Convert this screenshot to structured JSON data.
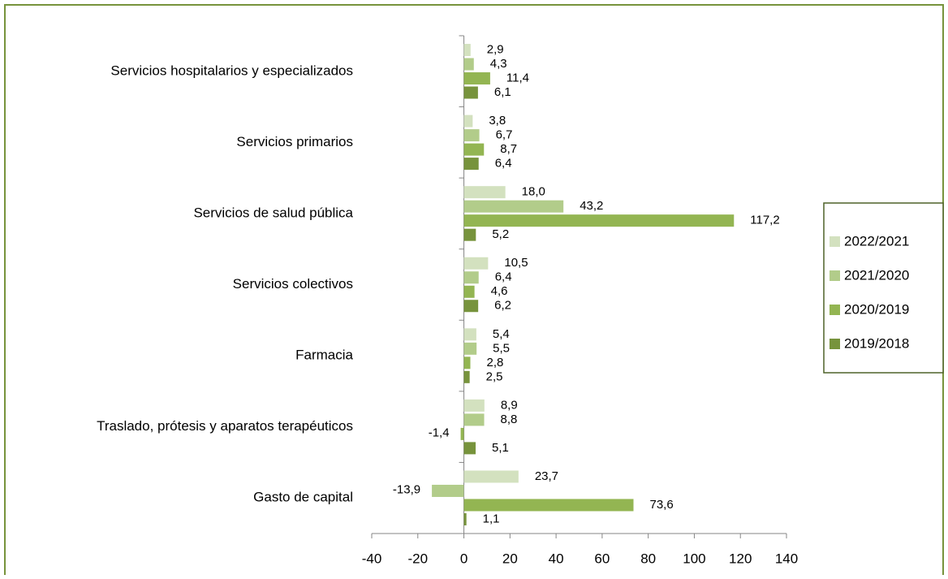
{
  "chart_data": {
    "type": "bar",
    "orientation": "horizontal",
    "categories": [
      "Servicios hospitalarios y especializados",
      "Servicios primarios",
      "Servicios de salud pública",
      "Servicios colectivos",
      "Farmacia",
      "Traslado, prótesis y aparatos terapéuticos",
      "Gasto de capital"
    ],
    "series": [
      {
        "name": "2022/2021",
        "color": "#d3e1bf",
        "values": [
          2.9,
          3.8,
          18.0,
          10.5,
          5.4,
          8.9,
          23.7
        ],
        "value_labels": [
          "2,9",
          "3,8",
          "18,0",
          "10,5",
          "5,4",
          "8,9",
          "23,7"
        ]
      },
      {
        "name": "2021/2020",
        "color": "#b2cc8a",
        "values": [
          4.3,
          6.7,
          43.2,
          6.4,
          5.5,
          8.8,
          -13.9
        ],
        "value_labels": [
          "4,3",
          "6,7",
          "43,2",
          "6,4",
          "5,5",
          "8,8",
          "-13,9"
        ]
      },
      {
        "name": "2020/2019",
        "color": "#93b552",
        "values": [
          11.4,
          8.7,
          117.2,
          4.6,
          2.8,
          -1.4,
          73.6
        ],
        "value_labels": [
          "11,4",
          "8,7",
          "117,2",
          "4,6",
          "2,8",
          "-1,4",
          "73,6"
        ]
      },
      {
        "name": "2019/2018",
        "color": "#77933c",
        "values": [
          6.1,
          6.4,
          5.2,
          6.2,
          2.5,
          5.1,
          1.1
        ],
        "value_labels": [
          "6,1",
          "6,4",
          "5,2",
          "6,2",
          "2,5",
          "5,1",
          "1,1"
        ]
      }
    ],
    "xlim": [
      -40,
      140
    ],
    "xticks": [
      -40,
      -20,
      0,
      20,
      40,
      60,
      80,
      100,
      120,
      140
    ],
    "grid": false,
    "legend": "right"
  }
}
